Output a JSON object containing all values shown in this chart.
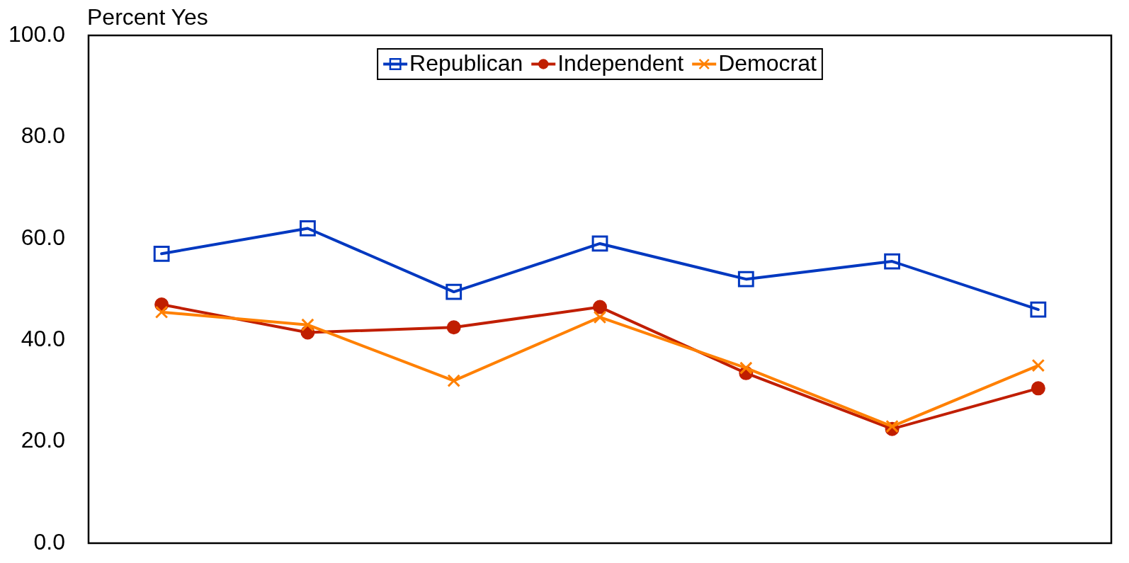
{
  "chart_data": {
    "type": "line",
    "ylabel": "Percent Yes",
    "categories": [
      null,
      null,
      null,
      null,
      null,
      null,
      null
    ],
    "series": [
      {
        "name": "Republican",
        "color": "#0038c0",
        "marker": "square",
        "values": [
          57,
          62,
          49.5,
          59,
          52,
          55.5,
          46
        ]
      },
      {
        "name": "Independent",
        "color": "#c01e00",
        "marker": "circle",
        "values": [
          47,
          41.5,
          42.5,
          46.5,
          33.5,
          22.5,
          30.5
        ]
      },
      {
        "name": "Democrat",
        "color": "#ff8000",
        "marker": "cross",
        "values": [
          45.5,
          43,
          32,
          44.5,
          34.5,
          23,
          35
        ]
      }
    ],
    "ylim": [
      0,
      100
    ],
    "yticks": [
      {
        "value": 0,
        "label": "0.0"
      },
      {
        "value": 20,
        "label": "20.0"
      },
      {
        "value": 40,
        "label": "40.0"
      },
      {
        "value": 60,
        "label": "60.0"
      },
      {
        "value": 80,
        "label": "80.0"
      },
      {
        "value": 100,
        "label": "100.0"
      }
    ],
    "grid": false,
    "legend": "top",
    "tick_labels": "y",
    "line_style": "solid"
  }
}
